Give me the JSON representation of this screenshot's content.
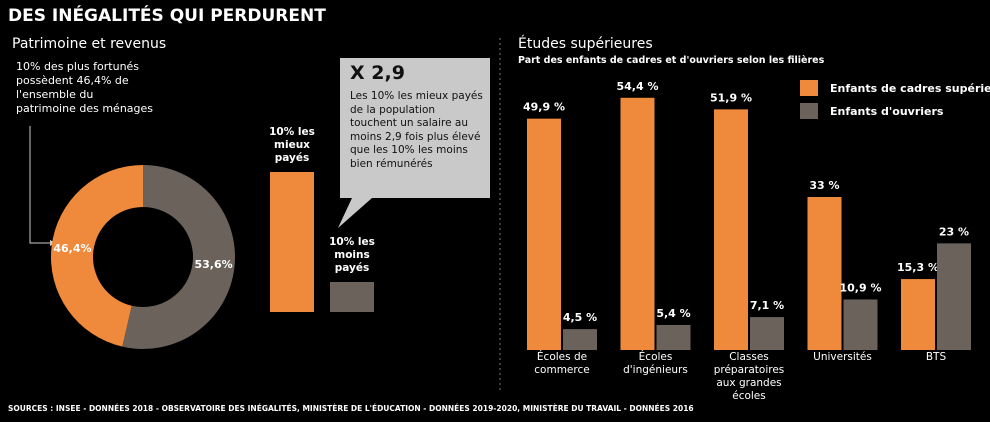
{
  "title": "DES INÉGALITÉS QUI PERDURENT",
  "sources": "SOURCES : INSEE - DONNÉES 2018 - OBSERVATOIRE DES INÉGALITÉS, MINISTÈRE DE L'ÉDUCATION - DONNÉES 2019-2020, MINISTÈRE DU TRAVAIL - DONNÉES 2016",
  "chart_data": [
    {
      "type": "pie",
      "title": "Patrimoine et revenus",
      "annotation": "10% des plus fortunés possèdent 46,4% de l'ensemble du patrimoine des ménages",
      "values": [
        46.4,
        53.6
      ],
      "value_labels": [
        "46,4%",
        "53,6%"
      ],
      "colors": [
        "#ef8a3c",
        "#6b625b"
      ]
    },
    {
      "type": "bar",
      "categories": [
        "10% les mieux payés",
        "10% les moins payés"
      ],
      "values": [
        140,
        30
      ],
      "ylim": [
        0,
        150
      ],
      "colors": [
        "#ef8a3c",
        "#6b625b"
      ],
      "callout": {
        "title": "X 2,9",
        "text": "Les 10% les mieux payés de la population touchent un salaire au moins 2,9 fois plus élevé que les 10% les moins bien rémunérés"
      }
    },
    {
      "type": "bar",
      "title": "Études supérieures",
      "subtitle": "Part des enfants de cadres et d'ouvriers selon les filières",
      "categories": [
        "Écoles de commerce",
        "Écoles d'ingénieurs",
        "Classes préparatoires aux grandes écoles",
        "Universités",
        "BTS"
      ],
      "ylim": [
        0,
        55
      ],
      "legend": "top-right",
      "series": [
        {
          "name": "Enfants de cadres supérieurs",
          "color": "#ef8a3c",
          "values": [
            49.9,
            54.4,
            51.9,
            33,
            15.3
          ],
          "value_labels": [
            "49,9 %",
            "54,4 %",
            "51,9 %",
            "33 %",
            "15,3 %"
          ]
        },
        {
          "name": "Enfants d'ouvriers",
          "color": "#6b625b",
          "values": [
            4.5,
            5.4,
            7.1,
            10.9,
            23
          ],
          "value_labels": [
            "4,5 %",
            "5,4 %",
            "7,1 %",
            "10,9 %",
            "23 %"
          ]
        }
      ]
    }
  ]
}
